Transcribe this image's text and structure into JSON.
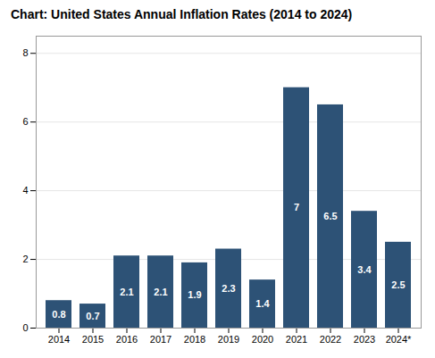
{
  "chart_data": {
    "type": "bar",
    "title": "Chart: United States Annual Inflation Rates (2014 to 2024)",
    "categories": [
      "2014",
      "2015",
      "2016",
      "2017",
      "2018",
      "2019",
      "2020",
      "2021",
      "2022",
      "2023",
      "2024*"
    ],
    "values": [
      0.8,
      0.7,
      2.1,
      2.1,
      1.9,
      2.3,
      1.4,
      7.0,
      6.5,
      3.4,
      2.5
    ],
    "color": "#2d5276",
    "ylim": [
      0,
      8.5
    ],
    "yticks": [
      0,
      2,
      4,
      6,
      8
    ],
    "grid": true,
    "data_labels": true
  }
}
